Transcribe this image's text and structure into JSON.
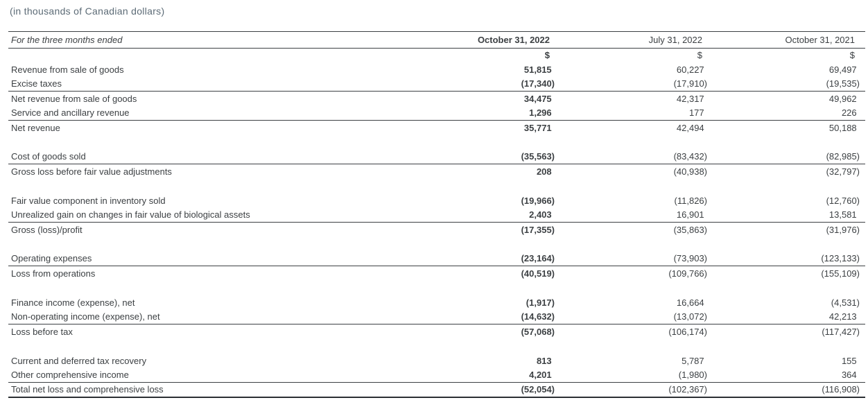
{
  "page": {
    "units_label": "(in thousands of Canadian dollars)"
  },
  "table": {
    "period_label": "For the three months ended",
    "columns": [
      "October 31, 2022",
      "July 31, 2022",
      "October 31, 2021"
    ],
    "currency_symbol": "$",
    "rows": [
      {
        "label": "Revenue from sale of goods",
        "values": [
          "51,815",
          "60,227",
          "69,497"
        ]
      },
      {
        "label": "Excise taxes",
        "values": [
          "(17,340)",
          "(17,910)",
          "(19,535)"
        ],
        "rule_below": true
      },
      {
        "label": "Net revenue from sale of goods",
        "values": [
          "34,475",
          "42,317",
          "49,962"
        ]
      },
      {
        "label": "Service and ancillary revenue",
        "values": [
          "1,296",
          "177",
          "226"
        ],
        "rule_below": true
      },
      {
        "label": "Net revenue",
        "values": [
          "35,771",
          "42,494",
          "50,188"
        ]
      },
      {
        "spacer": true
      },
      {
        "label": "Cost of goods sold",
        "values": [
          "(35,563)",
          "(83,432)",
          "(82,985)"
        ],
        "rule_below": true
      },
      {
        "label": "Gross loss before fair value adjustments",
        "values": [
          "208",
          "(40,938)",
          "(32,797)"
        ]
      },
      {
        "spacer": true
      },
      {
        "label": "Fair value component in inventory sold",
        "values": [
          "(19,966)",
          "(11,826)",
          "(12,760)"
        ]
      },
      {
        "label": "Unrealized gain on changes in fair value of biological assets",
        "values": [
          "2,403",
          "16,901",
          "13,581"
        ],
        "rule_below": true
      },
      {
        "label": "Gross (loss)/profit",
        "values": [
          "(17,355)",
          "(35,863)",
          "(31,976)"
        ]
      },
      {
        "spacer": true
      },
      {
        "label": "Operating expenses",
        "values": [
          "(23,164)",
          "(73,903)",
          "(123,133)"
        ],
        "rule_below": true
      },
      {
        "label": "Loss from operations",
        "values": [
          "(40,519)",
          "(109,766)",
          "(155,109)"
        ]
      },
      {
        "spacer": true
      },
      {
        "label": "Finance income (expense), net",
        "values": [
          "(1,917)",
          "16,664",
          "(4,531)"
        ]
      },
      {
        "label": "Non-operating income (expense), net",
        "values": [
          "(14,632)",
          "(13,072)",
          "42,213"
        ],
        "rule_below": true
      },
      {
        "label": "Loss before tax",
        "values": [
          "(57,068)",
          "(106,174)",
          "(117,427)"
        ]
      },
      {
        "spacer": true
      },
      {
        "label": "Current and deferred tax recovery",
        "values": [
          "813",
          "5,787",
          "155"
        ]
      },
      {
        "label": "Other comprehensive income",
        "values": [
          "4,201",
          "(1,980)",
          "364"
        ],
        "rule_below": true
      },
      {
        "label": "Total net loss and comprehensive loss",
        "values": [
          "(52,054)",
          "(102,367)",
          "(116,908)"
        ],
        "rule_below": "thick"
      }
    ]
  }
}
